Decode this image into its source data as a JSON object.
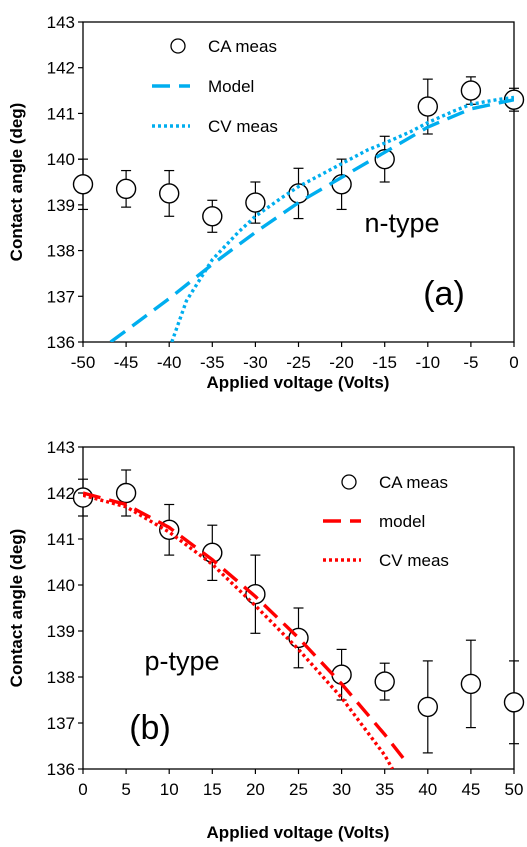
{
  "chart_data": [
    {
      "type": "scatter",
      "panel_label": "(a)",
      "annotation": "n-type",
      "xlabel": "Applied voltage (Volts)",
      "ylabel": "Contact angle (deg)",
      "xlim": [
        -50,
        0
      ],
      "ylim": [
        136,
        143
      ],
      "xticks": [
        -50,
        -45,
        -40,
        -35,
        -30,
        -25,
        -20,
        -15,
        -10,
        -5,
        0
      ],
      "yticks": [
        136,
        137,
        138,
        139,
        140,
        141,
        142,
        143
      ],
      "grid": false,
      "legend_position": "top-left",
      "series": [
        {
          "name": "CA meas",
          "kind": "markers",
          "marker": "open-circle",
          "color": "#000000",
          "x": [
            -50,
            -45,
            -40,
            -35,
            -30,
            -25,
            -20,
            -15,
            -10,
            -5,
            0
          ],
          "y": [
            139.45,
            139.35,
            139.25,
            138.75,
            139.05,
            139.25,
            139.45,
            140.0,
            141.15,
            141.5,
            141.3
          ],
          "error": [
            0.55,
            0.4,
            0.5,
            0.35,
            0.45,
            0.55,
            0.55,
            0.5,
            0.6,
            0.3,
            0.25
          ]
        },
        {
          "name": "Model",
          "kind": "line",
          "dash": "long-dash",
          "color": "#00AEEF",
          "x": [
            -46.8,
            -45,
            -40,
            -35,
            -30,
            -25,
            -20,
            -15,
            -10,
            -5,
            0
          ],
          "y": [
            136.0,
            136.25,
            136.95,
            137.7,
            138.4,
            139.05,
            139.6,
            140.15,
            140.7,
            141.1,
            141.3
          ]
        },
        {
          "name": "CV meas",
          "kind": "line",
          "dash": "dotted",
          "color": "#00AEEF",
          "x": [
            -39.7,
            -38,
            -35,
            -32,
            -30,
            -27,
            -25,
            -22,
            -20,
            -17,
            -15,
            -12,
            -10,
            -7,
            -5,
            -2,
            0
          ],
          "y": [
            136.0,
            136.9,
            137.8,
            138.4,
            138.75,
            139.15,
            139.4,
            139.7,
            139.9,
            140.2,
            140.35,
            140.6,
            140.8,
            141.05,
            141.2,
            141.3,
            141.35
          ]
        }
      ]
    },
    {
      "type": "scatter",
      "panel_label": "(b)",
      "annotation": "p-type",
      "xlabel": "Applied voltage (Volts)",
      "ylabel": "Contact angle (deg)",
      "xlim": [
        0,
        50
      ],
      "ylim": [
        136,
        143
      ],
      "xticks": [
        0,
        5,
        10,
        15,
        20,
        25,
        30,
        35,
        40,
        45,
        50
      ],
      "yticks": [
        136,
        137,
        138,
        139,
        140,
        141,
        142,
        143
      ],
      "grid": false,
      "legend_position": "top-right",
      "series": [
        {
          "name": "CA meas",
          "kind": "markers",
          "marker": "open-circle",
          "color": "#000000",
          "x": [
            0,
            5,
            10,
            15,
            20,
            25,
            30,
            35,
            40,
            45,
            50
          ],
          "y": [
            141.9,
            142.0,
            141.2,
            140.7,
            139.8,
            138.85,
            138.05,
            137.9,
            137.35,
            137.85,
            137.45
          ],
          "error": [
            0.4,
            0.5,
            0.55,
            0.6,
            0.85,
            0.65,
            0.55,
            0.4,
            1.0,
            0.95,
            0.9
          ]
        },
        {
          "name": "model",
          "kind": "line",
          "dash": "long-dash",
          "color": "#FF0000",
          "x": [
            0,
            5,
            10,
            15,
            20,
            25,
            30,
            35,
            37.3
          ],
          "y": [
            142.0,
            141.75,
            141.25,
            140.55,
            139.75,
            138.85,
            137.85,
            136.75,
            136.2
          ]
        },
        {
          "name": "CV meas",
          "kind": "line",
          "dash": "dotted",
          "color": "#FF0000",
          "x": [
            0,
            5,
            10,
            15,
            20,
            25,
            30,
            35,
            35.9
          ],
          "y": [
            141.95,
            141.7,
            141.15,
            140.45,
            139.55,
            138.6,
            137.55,
            136.3,
            136.0
          ]
        }
      ]
    }
  ]
}
